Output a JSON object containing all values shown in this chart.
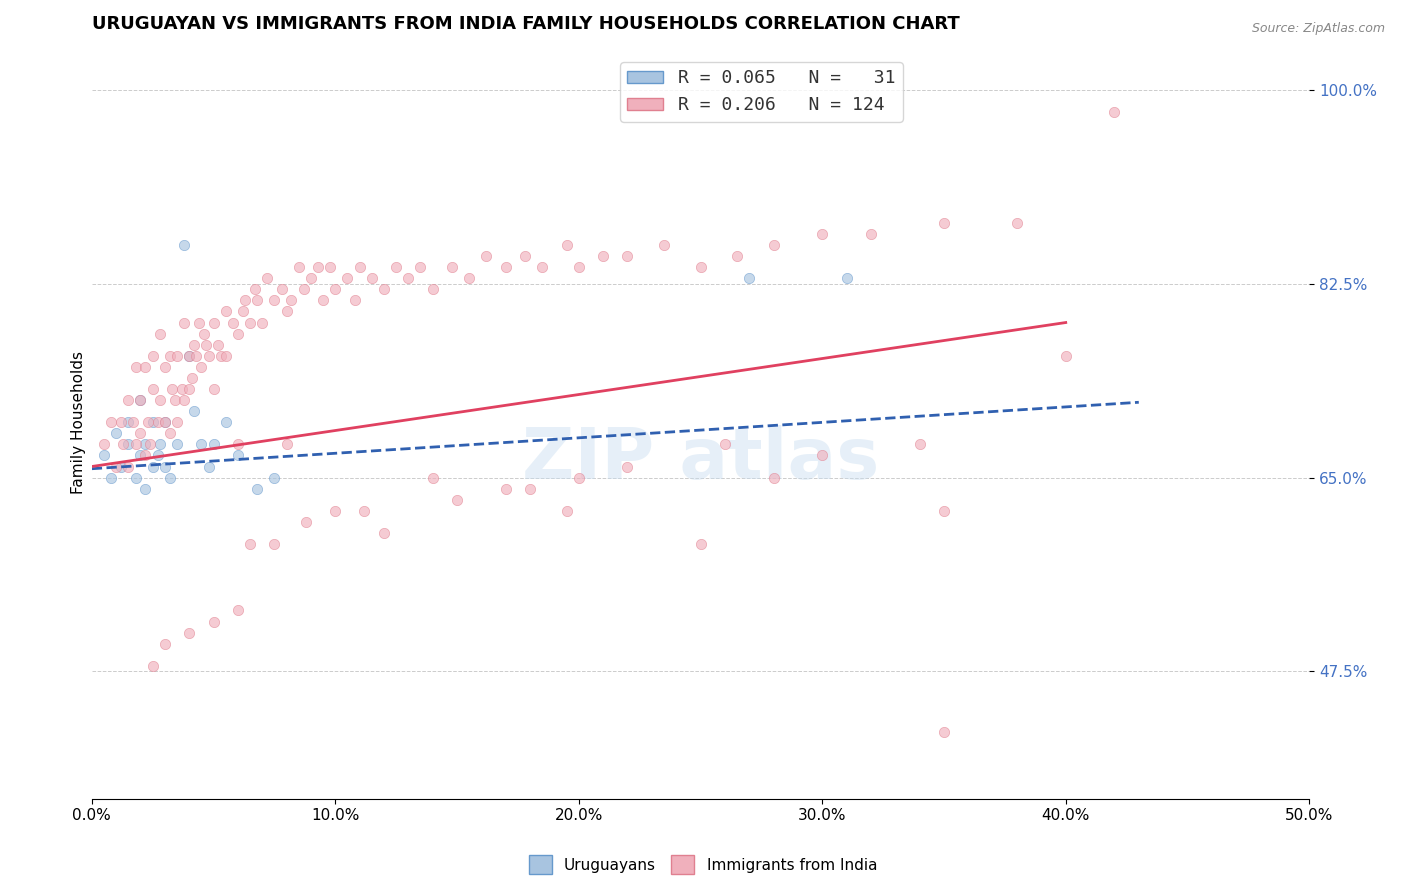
{
  "title": "URUGUAYAN VS IMMIGRANTS FROM INDIA FAMILY HOUSEHOLDS CORRELATION CHART",
  "source": "Source: ZipAtlas.com",
  "ylabel": "Family Households",
  "xlim": [
    0.0,
    0.5
  ],
  "ylim": [
    0.36,
    1.04
  ],
  "yticks": [
    0.475,
    0.65,
    0.825,
    1.0
  ],
  "ytick_labels": [
    "47.5%",
    "65.0%",
    "82.5%",
    "100.0%"
  ],
  "xticks": [
    0.0,
    0.1,
    0.2,
    0.3,
    0.4,
    0.5
  ],
  "xtick_labels": [
    "0.0%",
    "10.0%",
    "20.0%",
    "30.0%",
    "40.0%",
    "50.0%"
  ],
  "scatter_blue_x": [
    0.005,
    0.008,
    0.01,
    0.012,
    0.015,
    0.015,
    0.018,
    0.02,
    0.02,
    0.022,
    0.022,
    0.025,
    0.025,
    0.027,
    0.028,
    0.03,
    0.03,
    0.032,
    0.035,
    0.038,
    0.04,
    0.042,
    0.045,
    0.048,
    0.05,
    0.055,
    0.06,
    0.068,
    0.075,
    0.27,
    0.31
  ],
  "scatter_blue_y": [
    0.67,
    0.65,
    0.69,
    0.66,
    0.68,
    0.7,
    0.65,
    0.72,
    0.67,
    0.64,
    0.68,
    0.66,
    0.7,
    0.67,
    0.68,
    0.66,
    0.7,
    0.65,
    0.68,
    0.86,
    0.76,
    0.71,
    0.68,
    0.66,
    0.68,
    0.7,
    0.67,
    0.64,
    0.65,
    0.83,
    0.83
  ],
  "scatter_pink_x": [
    0.005,
    0.008,
    0.01,
    0.012,
    0.013,
    0.015,
    0.015,
    0.017,
    0.018,
    0.018,
    0.02,
    0.02,
    0.022,
    0.022,
    0.023,
    0.024,
    0.025,
    0.025,
    0.027,
    0.028,
    0.028,
    0.03,
    0.03,
    0.032,
    0.032,
    0.033,
    0.034,
    0.035,
    0.035,
    0.037,
    0.038,
    0.038,
    0.04,
    0.04,
    0.041,
    0.042,
    0.043,
    0.044,
    0.045,
    0.046,
    0.047,
    0.048,
    0.05,
    0.05,
    0.052,
    0.053,
    0.055,
    0.055,
    0.058,
    0.06,
    0.062,
    0.063,
    0.065,
    0.067,
    0.068,
    0.07,
    0.072,
    0.075,
    0.078,
    0.08,
    0.082,
    0.085,
    0.087,
    0.09,
    0.093,
    0.095,
    0.098,
    0.1,
    0.105,
    0.108,
    0.11,
    0.115,
    0.12,
    0.125,
    0.13,
    0.135,
    0.14,
    0.148,
    0.155,
    0.162,
    0.17,
    0.178,
    0.185,
    0.195,
    0.2,
    0.21,
    0.22,
    0.235,
    0.25,
    0.265,
    0.28,
    0.3,
    0.32,
    0.35,
    0.38,
    0.12,
    0.25,
    0.3,
    0.34,
    0.4,
    0.17,
    0.18,
    0.22,
    0.26,
    0.195,
    0.28,
    0.35,
    0.1,
    0.15,
    0.06,
    0.08,
    0.14,
    0.2,
    0.06,
    0.025,
    0.03,
    0.04,
    0.05,
    0.065,
    0.075,
    0.088,
    0.112,
    0.35,
    0.42
  ],
  "scatter_pink_y": [
    0.68,
    0.7,
    0.66,
    0.7,
    0.68,
    0.72,
    0.66,
    0.7,
    0.68,
    0.75,
    0.69,
    0.72,
    0.67,
    0.75,
    0.7,
    0.68,
    0.73,
    0.76,
    0.7,
    0.72,
    0.78,
    0.7,
    0.75,
    0.69,
    0.76,
    0.73,
    0.72,
    0.7,
    0.76,
    0.73,
    0.72,
    0.79,
    0.76,
    0.73,
    0.74,
    0.77,
    0.76,
    0.79,
    0.75,
    0.78,
    0.77,
    0.76,
    0.79,
    0.73,
    0.77,
    0.76,
    0.8,
    0.76,
    0.79,
    0.78,
    0.8,
    0.81,
    0.79,
    0.82,
    0.81,
    0.79,
    0.83,
    0.81,
    0.82,
    0.8,
    0.81,
    0.84,
    0.82,
    0.83,
    0.84,
    0.81,
    0.84,
    0.82,
    0.83,
    0.81,
    0.84,
    0.83,
    0.82,
    0.84,
    0.83,
    0.84,
    0.82,
    0.84,
    0.83,
    0.85,
    0.84,
    0.85,
    0.84,
    0.86,
    0.84,
    0.85,
    0.85,
    0.86,
    0.84,
    0.85,
    0.86,
    0.87,
    0.87,
    0.88,
    0.88,
    0.6,
    0.59,
    0.67,
    0.68,
    0.76,
    0.64,
    0.64,
    0.66,
    0.68,
    0.62,
    0.65,
    0.62,
    0.62,
    0.63,
    0.68,
    0.68,
    0.65,
    0.65,
    0.53,
    0.48,
    0.5,
    0.51,
    0.52,
    0.59,
    0.59,
    0.61,
    0.62,
    0.42,
    0.98
  ],
  "trendline_blue_x0": 0.0,
  "trendline_blue_x1": 0.43,
  "trendline_blue_y0": 0.658,
  "trendline_blue_y1": 0.718,
  "trendline_pink_x0": 0.0,
  "trendline_pink_x1": 0.4,
  "trendline_pink_y0": 0.66,
  "trendline_pink_y1": 0.79,
  "blue_scatter_color": "#a8c4e0",
  "blue_edge_color": "#6699cc",
  "pink_scatter_color": "#f0b0bc",
  "pink_edge_color": "#e08090",
  "blue_line_color": "#3060b0",
  "pink_line_color": "#e04060",
  "background_color": "#ffffff",
  "grid_color": "#cccccc",
  "title_fontsize": 13,
  "axis_label_fontsize": 11,
  "tick_fontsize": 11,
  "scatter_size": 55,
  "scatter_alpha": 0.65
}
